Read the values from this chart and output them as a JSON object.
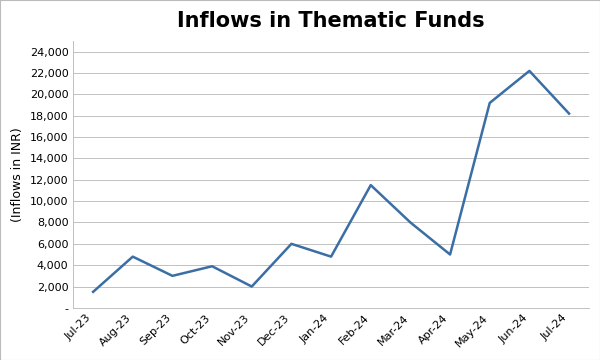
{
  "title": "Inflows in Thematic Funds",
  "ylabel": "(Inflows in INR)",
  "categories": [
    "Jul-23",
    "Aug-23",
    "Sep-23",
    "Oct-23",
    "Nov-23",
    "Dec-23",
    "Jan-24",
    "Feb-24",
    "Mar-24",
    "Apr-24",
    "May-24",
    "Jun-24",
    "Jul-24"
  ],
  "values": [
    1500,
    4800,
    3000,
    3900,
    2000,
    6000,
    4800,
    11500,
    8000,
    5000,
    19200,
    22200,
    18200
  ],
  "line_color": "#3A6EA5",
  "line_width": 1.8,
  "ylim_min": 0,
  "ylim_max": 25000,
  "yticks": [
    0,
    2000,
    4000,
    6000,
    8000,
    10000,
    12000,
    14000,
    16000,
    18000,
    20000,
    22000,
    24000
  ],
  "background_color": "#FFFFFF",
  "plot_bg_color": "#FFFFFF",
  "fig_border_color": "#BBBBBB",
  "title_fontsize": 15,
  "axis_label_fontsize": 9,
  "tick_fontsize": 8,
  "grid_color": "#C0C0C0",
  "zero_label": "-"
}
